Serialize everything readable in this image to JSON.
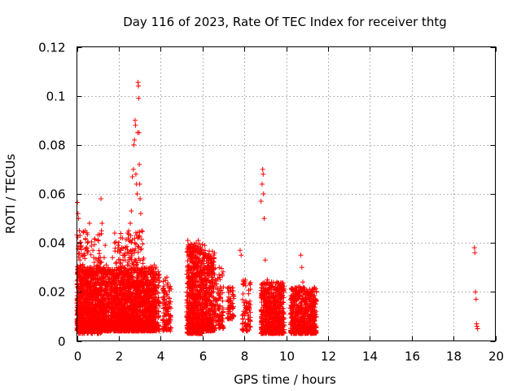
{
  "chart_data": {
    "type": "scatter",
    "title": "Day 116 of 2023, Rate Of TEC Index for receiver thtg",
    "xlabel": "GPS time / hours",
    "ylabel": "ROTI / TECUs",
    "xlim": [
      0,
      20
    ],
    "ylim": [
      0,
      0.12
    ],
    "x_ticks": [
      0,
      2,
      4,
      6,
      8,
      10,
      12,
      14,
      16,
      18,
      20
    ],
    "x_tick_labels": [
      "0",
      "2",
      "4",
      "6",
      "8",
      "10",
      "12",
      "14",
      "16",
      "18",
      "20"
    ],
    "y_ticks": [
      0,
      0.02,
      0.04,
      0.06,
      0.08,
      0.1,
      0.12
    ],
    "y_tick_labels": [
      "0",
      "0.02",
      "0.04",
      "0.06",
      "0.08",
      "0.1",
      "0.12"
    ],
    "grid": true,
    "marker": "+",
    "color": "#ff0000",
    "series": [
      {
        "name": "ROTI",
        "points": [
          [
            0.02,
            0.0565
          ],
          [
            0.05,
            0.052
          ],
          [
            0.08,
            0.05
          ],
          [
            0.12,
            0.045
          ],
          [
            0.15,
            0.043
          ],
          [
            0.2,
            0.038
          ],
          [
            0.25,
            0.035
          ],
          [
            0.3,
            0.03
          ],
          [
            0.4,
            0.045
          ],
          [
            0.45,
            0.038
          ],
          [
            0.5,
            0.036
          ],
          [
            0.55,
            0.028
          ],
          [
            0.6,
            0.048
          ],
          [
            0.7,
            0.029
          ],
          [
            0.8,
            0.034
          ],
          [
            0.9,
            0.025
          ],
          [
            1.0,
            0.027
          ],
          [
            1.1,
            0.029
          ],
          [
            1.15,
            0.058
          ],
          [
            1.2,
            0.048
          ],
          [
            1.3,
            0.034
          ],
          [
            1.35,
            0.039
          ],
          [
            1.4,
            0.031
          ],
          [
            1.5,
            0.025
          ],
          [
            1.6,
            0.028
          ],
          [
            1.7,
            0.034
          ],
          [
            1.8,
            0.04
          ],
          [
            1.9,
            0.032
          ],
          [
            2.0,
            0.038
          ],
          [
            2.1,
            0.03
          ],
          [
            2.2,
            0.035
          ],
          [
            2.3,
            0.033
          ],
          [
            2.4,
            0.036
          ],
          [
            2.45,
            0.042
          ],
          [
            2.5,
            0.041
          ],
          [
            2.55,
            0.048
          ],
          [
            2.6,
            0.053
          ],
          [
            2.65,
            0.067
          ],
          [
            2.7,
            0.07
          ],
          [
            2.72,
            0.08
          ],
          [
            2.75,
            0.082
          ],
          [
            2.78,
            0.09
          ],
          [
            2.8,
            0.088
          ],
          [
            2.82,
            0.068
          ],
          [
            2.85,
            0.064
          ],
          [
            2.88,
            0.06
          ],
          [
            2.9,
            0.085
          ],
          [
            2.92,
            0.1055
          ],
          [
            2.94,
            0.104
          ],
          [
            2.95,
            0.099
          ],
          [
            2.97,
            0.085
          ],
          [
            2.98,
            0.072
          ],
          [
            3.0,
            0.064
          ],
          [
            3.02,
            0.058
          ],
          [
            3.05,
            0.052
          ],
          [
            3.1,
            0.045
          ],
          [
            3.2,
            0.028
          ],
          [
            3.4,
            0.02
          ],
          [
            3.6,
            0.03
          ],
          [
            3.7,
            0.031
          ],
          [
            3.8,
            0.025
          ],
          [
            4.2,
            0.02
          ],
          [
            4.3,
            0.026
          ],
          [
            4.4,
            0.022
          ],
          [
            5.3,
            0.041
          ],
          [
            5.4,
            0.035
          ],
          [
            5.5,
            0.032
          ],
          [
            5.7,
            0.04
          ],
          [
            5.8,
            0.041
          ],
          [
            5.9,
            0.037
          ],
          [
            6.0,
            0.033
          ],
          [
            6.1,
            0.039
          ],
          [
            6.2,
            0.035
          ],
          [
            6.3,
            0.032
          ],
          [
            6.5,
            0.025
          ],
          [
            6.8,
            0.03
          ],
          [
            7.0,
            0.022
          ],
          [
            7.3,
            0.02
          ],
          [
            7.8,
            0.037
          ],
          [
            7.85,
            0.035
          ],
          [
            8.8,
            0.057
          ],
          [
            8.85,
            0.064
          ],
          [
            8.88,
            0.07
          ],
          [
            8.9,
            0.068
          ],
          [
            8.92,
            0.06
          ],
          [
            8.95,
            0.05
          ],
          [
            9.0,
            0.033
          ],
          [
            9.1,
            0.025
          ],
          [
            9.3,
            0.024
          ],
          [
            10.6,
            0.02
          ],
          [
            10.7,
            0.035
          ],
          [
            10.75,
            0.03
          ],
          [
            10.8,
            0.024
          ],
          [
            11.0,
            0.02
          ],
          [
            11.2,
            0.014
          ],
          [
            19.0,
            0.038
          ],
          [
            19.02,
            0.036
          ],
          [
            19.05,
            0.02
          ],
          [
            19.08,
            0.017
          ],
          [
            19.1,
            0.007
          ],
          [
            19.12,
            0.006
          ],
          [
            19.15,
            0.005
          ]
        ],
        "bands": [
          {
            "x": [
              0.0,
              3.75
            ],
            "y": [
              0.004,
              0.03
            ],
            "n": 2600
          },
          {
            "x": [
              0.0,
              1.2
            ],
            "y": [
              0.003,
              0.045
            ],
            "n": 250
          },
          {
            "x": [
              1.8,
              3.2
            ],
            "y": [
              0.004,
              0.045
            ],
            "n": 300
          },
          {
            "x": [
              3.5,
              3.95
            ],
            "y": [
              0.004,
              0.031
            ],
            "n": 140
          },
          {
            "x": [
              4.1,
              4.5
            ],
            "y": [
              0.004,
              0.026
            ],
            "n": 110
          },
          {
            "x": [
              5.25,
              6.0
            ],
            "y": [
              0.003,
              0.04
            ],
            "n": 700
          },
          {
            "x": [
              6.0,
              6.6
            ],
            "y": [
              0.004,
              0.037
            ],
            "n": 380
          },
          {
            "x": [
              6.6,
              7.0
            ],
            "y": [
              0.005,
              0.03
            ],
            "n": 90
          },
          {
            "x": [
              7.2,
              7.5
            ],
            "y": [
              0.009,
              0.022
            ],
            "n": 70
          },
          {
            "x": [
              7.9,
              8.3
            ],
            "y": [
              0.004,
              0.025
            ],
            "n": 80
          },
          {
            "x": [
              8.8,
              9.9
            ],
            "y": [
              0.003,
              0.024
            ],
            "n": 700
          },
          {
            "x": [
              10.2,
              11.45
            ],
            "y": [
              0.003,
              0.022
            ],
            "n": 650
          }
        ]
      }
    ]
  }
}
